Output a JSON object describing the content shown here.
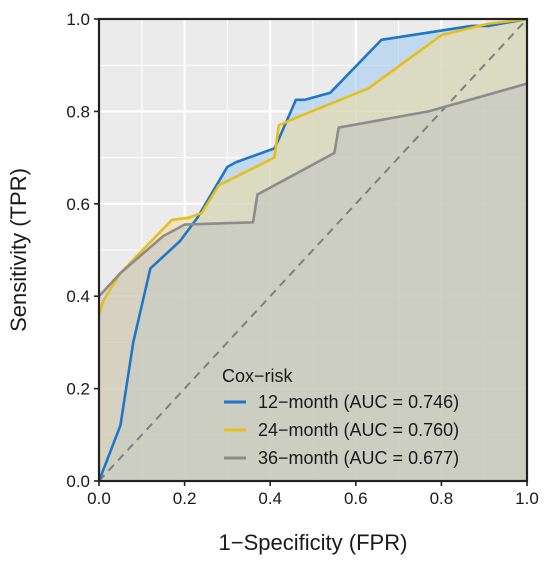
{
  "chart_data": {
    "type": "line",
    "title": "",
    "xlabel": "1−Specificity (FPR)",
    "ylabel": "Sensitivity (TPR)",
    "xlim": [
      0,
      1
    ],
    "ylim": [
      0,
      1
    ],
    "xticks": [
      0.0,
      0.2,
      0.4,
      0.6,
      0.8,
      1.0
    ],
    "yticks": [
      0.0,
      0.2,
      0.4,
      0.6,
      0.8,
      1.0
    ],
    "xtick_labels": [
      "0.0",
      "0.2",
      "0.4",
      "0.6",
      "0.8",
      "1.0"
    ],
    "ytick_labels": [
      "0.0",
      "0.2",
      "0.4",
      "0.6",
      "0.8",
      "1.0"
    ],
    "grid": true,
    "reference_line": {
      "x": [
        0,
        1
      ],
      "y": [
        0,
        1
      ],
      "style": "dashed",
      "color": "#7f7f7f"
    },
    "legend": {
      "title": "Cox−risk",
      "position": "bottom-right"
    },
    "series": [
      {
        "name": "12−month (AUC = 0.746)",
        "color": "#1f77c8",
        "fill": "#9fcbf0",
        "x": [
          0,
          0.05,
          0.08,
          0.12,
          0.19,
          0.23,
          0.3,
          0.32,
          0.41,
          0.42,
          0.46,
          0.48,
          0.54,
          0.66,
          0.87,
          0.91,
          1.0
        ],
        "y": [
          0,
          0.12,
          0.3,
          0.46,
          0.52,
          0.57,
          0.68,
          0.69,
          0.72,
          0.74,
          0.825,
          0.825,
          0.84,
          0.955,
          0.985,
          0.985,
          1.0
        ]
      },
      {
        "name": "24−month (AUC = 0.760)",
        "color": "#e6bf1c",
        "fill": "#eedd9a",
        "x": [
          0,
          0.01,
          0.05,
          0.17,
          0.21,
          0.24,
          0.28,
          0.41,
          0.42,
          0.47,
          0.63,
          0.8,
          0.91,
          1.0
        ],
        "y": [
          0.36,
          0.39,
          0.45,
          0.565,
          0.57,
          0.58,
          0.64,
          0.7,
          0.77,
          0.79,
          0.85,
          0.965,
          0.99,
          1.0
        ]
      },
      {
        "name": "36−month (AUC = 0.677)",
        "color": "#8c8c8c",
        "fill": "#c2c2c2",
        "x": [
          0,
          0.05,
          0.15,
          0.2,
          0.36,
          0.37,
          0.55,
          0.56,
          0.77,
          1.0
        ],
        "y": [
          0.4,
          0.45,
          0.53,
          0.555,
          0.56,
          0.62,
          0.71,
          0.765,
          0.8,
          0.86
        ]
      }
    ]
  }
}
